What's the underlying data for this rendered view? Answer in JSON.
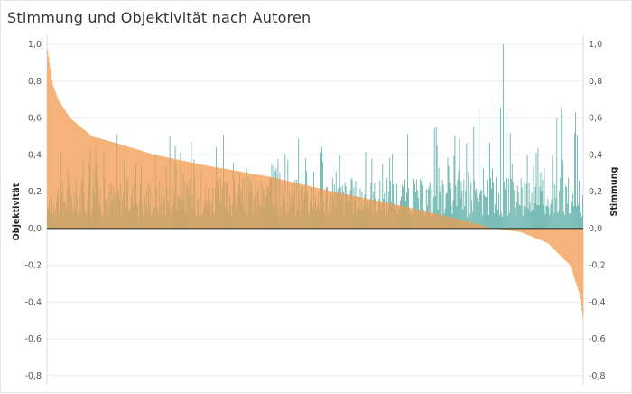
{
  "title": "Stimmung und Objektivität nach Autoren",
  "chart_data": {
    "type": "bar",
    "description_x": "authors sorted by descending Stimmung",
    "left_axis": {
      "label": "Objektivität",
      "ylim": [
        -0.85,
        1.05
      ],
      "ticks": [
        1.0,
        0.8,
        0.6,
        0.4,
        0.2,
        0.0,
        -0.2,
        -0.4,
        -0.6,
        -0.8
      ],
      "tick_labels": [
        "1,0",
        "0,8",
        "0,6",
        "0,4",
        "0,2",
        "0,0",
        "-0,2",
        "-0,4",
        "-0,6",
        "-0,8"
      ]
    },
    "right_axis": {
      "label": "Stimmung",
      "ylim": [
        -0.85,
        1.05
      ],
      "ticks": [
        1.0,
        0.8,
        0.6,
        0.4,
        0.2,
        0.0,
        -0.2,
        -0.4,
        -0.6,
        -0.8
      ],
      "tick_labels": [
        "1,0",
        "0,8",
        "0,6",
        "0,4",
        "0,2",
        "0,0",
        "-0,2",
        "-0,4",
        "-0,6",
        "-0,8"
      ]
    },
    "series": [
      {
        "name": "Stimmung",
        "color": "#f5b37a",
        "profile_keypoints": [
          [
            0,
            0.97
          ],
          [
            2,
            0.9
          ],
          [
            6,
            0.78
          ],
          [
            12,
            0.7
          ],
          [
            25,
            0.6
          ],
          [
            50,
            0.5
          ],
          [
            80,
            0.46
          ],
          [
            120,
            0.4
          ],
          [
            180,
            0.34
          ],
          [
            250,
            0.28
          ],
          [
            320,
            0.2
          ],
          [
            400,
            0.12
          ],
          [
            460,
            0.05
          ],
          [
            500,
            0.0
          ],
          [
            530,
            -0.02
          ],
          [
            560,
            -0.08
          ],
          [
            585,
            -0.2
          ],
          [
            595,
            -0.35
          ],
          [
            599,
            -0.48
          ]
        ]
      },
      {
        "name": "Objektivität",
        "color": "#6cb5ae",
        "values_sample_peaks": [
          0.3,
          0.38,
          0.5,
          0.42,
          0.34,
          0.28,
          0.48,
          0.24,
          0.6,
          0.8,
          1.0,
          0.68,
          0.4,
          0.3,
          0.22
        ]
      }
    ],
    "overlap_color": "#c9a46a"
  }
}
